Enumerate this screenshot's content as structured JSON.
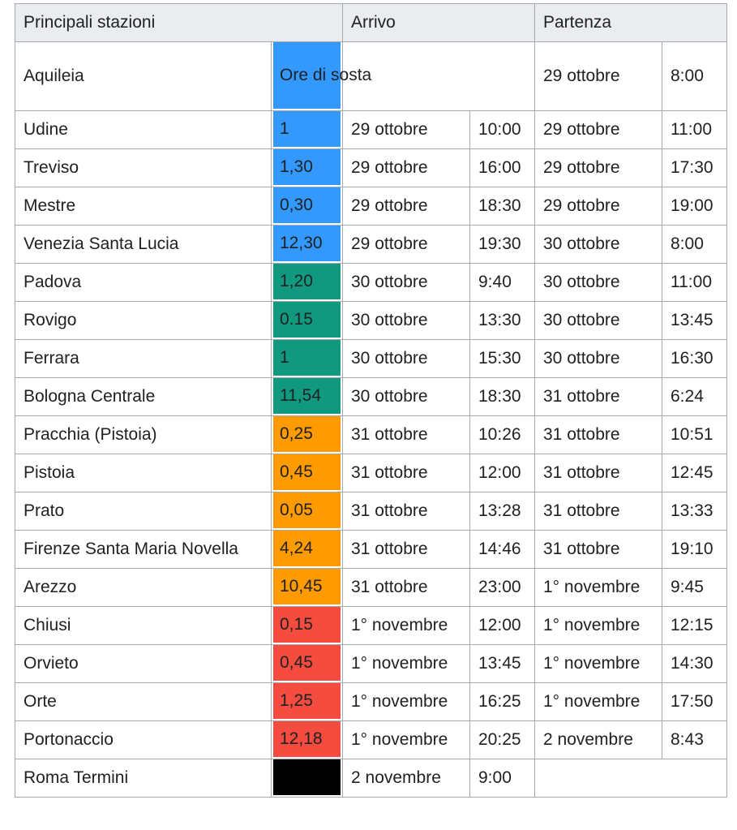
{
  "header": {
    "stations": "Principali stazioni",
    "arrival": "Arrivo",
    "departure": "Partenza"
  },
  "first_row": {
    "station": "Aquileia",
    "stop_label": "Ore di sosta",
    "stop_color": "#3399ff",
    "dep_date": "29 ottobre",
    "dep_time": "8:00"
  },
  "rows": [
    {
      "station": "Udine",
      "stop": "1",
      "color": "blue",
      "arr_date": "29 ottobre",
      "arr_time": "10:00",
      "dep_date": "29 ottobre",
      "dep_time": "11:00"
    },
    {
      "station": "Treviso",
      "stop": "1,30",
      "color": "blue",
      "arr_date": "29 ottobre",
      "arr_time": "16:00",
      "dep_date": "29 ottobre",
      "dep_time": "17:30"
    },
    {
      "station": "Mestre",
      "stop": "0,30",
      "color": "blue",
      "arr_date": "29 ottobre",
      "arr_time": "18:30",
      "dep_date": "29 ottobre",
      "dep_time": "19:00"
    },
    {
      "station": "Venezia Santa Lucia",
      "stop": "12,30",
      "color": "blue",
      "arr_date": "29 ottobre",
      "arr_time": "19:30",
      "dep_date": "30 ottobre",
      "dep_time": "8:00"
    },
    {
      "station": "Padova",
      "stop": "1,20",
      "color": "teal",
      "arr_date": "30 ottobre",
      "arr_time": "9:40",
      "dep_date": "30 ottobre",
      "dep_time": "11:00"
    },
    {
      "station": "Rovigo",
      "stop": "0.15",
      "color": "teal",
      "arr_date": "30 ottobre",
      "arr_time": "13:30",
      "dep_date": "30 ottobre",
      "dep_time": "13:45"
    },
    {
      "station": "Ferrara",
      "stop": "1",
      "color": "teal",
      "arr_date": "30 ottobre",
      "arr_time": "15:30",
      "dep_date": "30 ottobre",
      "dep_time": "16:30"
    },
    {
      "station": "Bologna Centrale",
      "stop": "11,54",
      "color": "teal",
      "arr_date": "30 ottobre",
      "arr_time": "18:30",
      "dep_date": "31 ottobre",
      "dep_time": "6:24"
    },
    {
      "station": "Pracchia (Pistoia)",
      "stop": "0,25",
      "color": "orange",
      "arr_date": "31 ottobre",
      "arr_time": "10:26",
      "dep_date": "31 ottobre",
      "dep_time": "10:51"
    },
    {
      "station": "Pistoia",
      "stop": "0,45",
      "color": "orange",
      "arr_date": "31 ottobre",
      "arr_time": "12:00",
      "dep_date": "31 ottobre",
      "dep_time": "12:45"
    },
    {
      "station": "Prato",
      "stop": "0,05",
      "color": "orange",
      "arr_date": "31 ottobre",
      "arr_time": "13:28",
      "dep_date": "31 ottobre",
      "dep_time": "13:33"
    },
    {
      "station": "Firenze Santa Maria Novella",
      "stop": "4,24",
      "color": "orange",
      "arr_date": "31 ottobre",
      "arr_time": "14:46",
      "dep_date": "31 ottobre",
      "dep_time": "19:10"
    },
    {
      "station": "Arezzo",
      "stop": "10,45",
      "color": "orange",
      "arr_date": "31 ottobre",
      "arr_time": "23:00",
      "dep_date": "1° novembre",
      "dep_time": "9:45"
    },
    {
      "station": "Chiusi",
      "stop": "0,15",
      "color": "red",
      "arr_date": "1° novembre",
      "arr_time": "12:00",
      "dep_date": "1° novembre",
      "dep_time": "12:15"
    },
    {
      "station": "Orvieto",
      "stop": "0,45",
      "color": "red",
      "arr_date": "1° novembre",
      "arr_time": "13:45",
      "dep_date": "1° novembre",
      "dep_time": "14:30"
    },
    {
      "station": "Orte",
      "stop": "1,25",
      "color": "red",
      "arr_date": "1° novembre",
      "arr_time": "16:25",
      "dep_date": "1° novembre",
      "dep_time": "17:50"
    },
    {
      "station": "Portonaccio",
      "stop": "12,18",
      "color": "red",
      "arr_date": "1° novembre",
      "arr_time": "20:25",
      "dep_date": "2 novembre",
      "dep_time": "8:43"
    },
    {
      "station": "Roma Termini",
      "stop": "",
      "color": "black",
      "arr_date": "2 novembre",
      "arr_time": "9:00",
      "dep_date": "",
      "dep_time": ""
    }
  ],
  "colors": {
    "blue": "#3399ff",
    "teal": "#119980",
    "orange": "#ff9a00",
    "red": "#f54c3f",
    "black": "#000000",
    "header_bg": "#eaecf0",
    "border": "#a2a9b1"
  }
}
